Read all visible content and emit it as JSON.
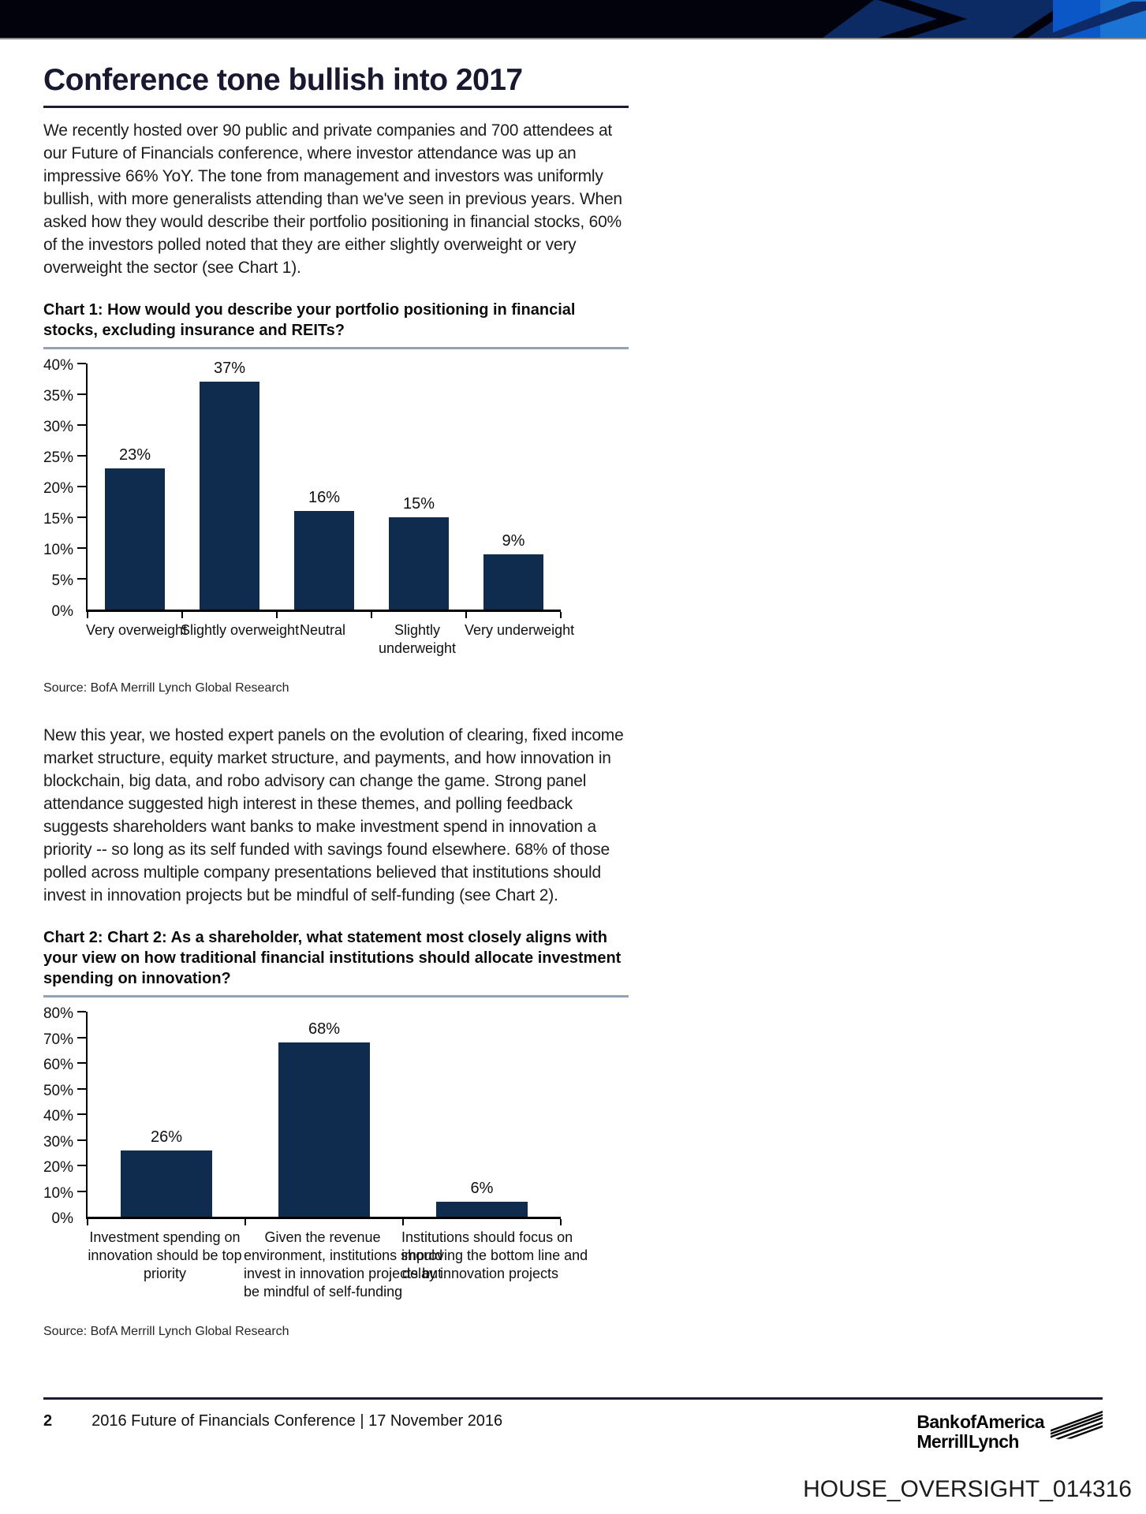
{
  "document": {
    "title": "Conference tone bullish into 2017",
    "paragraph1": "We recently hosted over 90 public and private companies and 700 attendees at our Future of Financials conference, where investor attendance was up an impressive 66% YoY. The tone from management and investors was uniformly bullish, with more generalists attending than we've seen in previous years. When asked how they would describe their portfolio positioning in financial stocks, 60% of the investors polled noted that they are either slightly overweight or very overweight the sector (see Chart 1).",
    "paragraph2": "New this year, we hosted expert panels on the evolution of clearing, fixed income market structure, equity market structure, and payments, and how innovation in blockchain, big data, and robo advisory can change the game. Strong panel attendance suggested high interest in these themes, and polling feedback suggests shareholders want banks to make investment spend in innovation a priority -- so long as its self funded with savings found elsewhere. 68% of those polled across multiple company presentations believed that institutions should invest in innovation projects but be mindful of self-funding (see Chart 2)."
  },
  "chart_data": [
    {
      "type": "bar",
      "title": "Chart 1: How would you describe your portfolio positioning in financial stocks, excluding insurance and REITs?",
      "categories": [
        "Very overweight",
        "Slightly overweight",
        "Neutral",
        "Slightly underweight",
        "Very underweight"
      ],
      "values": [
        23,
        37,
        16,
        15,
        9
      ],
      "value_labels": [
        "23%",
        "37%",
        "16%",
        "15%",
        "9%"
      ],
      "xtick_display": [
        "Very overweight",
        "Slightly overweight",
        "Neutral",
        "Slightly\nunderweight",
        "Very underweight"
      ],
      "ylim": [
        0,
        40
      ],
      "ytick_step": 5,
      "ytick_labels": [
        "0%",
        "5%",
        "10%",
        "15%",
        "20%",
        "25%",
        "30%",
        "35%",
        "40%"
      ],
      "grid": false,
      "legend": "none",
      "bar_color": "#0f2b4e",
      "source": "Source: BofA Merrill Lynch Global Research"
    },
    {
      "type": "bar",
      "title": "Chart 2: Chart 2: As a shareholder, what statement most closely aligns with your view on how traditional financial institutions should allocate investment spending on innovation?",
      "categories": [
        "Investment spending on innovation should be top priority",
        "Given the revenue environment, institutions should invest in innovation projects but be mindful of self-funding",
        "Institutions should focus on improving the bottom line and delay innovation projects"
      ],
      "values": [
        26,
        68,
        6
      ],
      "value_labels": [
        "26%",
        "68%",
        "6%"
      ],
      "xtick_display": [
        "Investment spending on\ninnovation should be top\npriority",
        "Given the revenue\nenvironment, institutions should\ninvest in innovation projects but\nbe mindful of self-funding",
        "Institutions should focus on\nimproving the bottom line and\ndelay innovation projects"
      ],
      "ylim": [
        0,
        80
      ],
      "ytick_step": 10,
      "ytick_labels": [
        "0%",
        "10%",
        "20%",
        "30%",
        "40%",
        "50%",
        "60%",
        "70%",
        "80%"
      ],
      "grid": false,
      "legend": "none",
      "bar_color": "#0f2b4e",
      "source": "Source: BofA Merrill Lynch Global Research"
    }
  ],
  "footer": {
    "page_number": "2",
    "text": "2016 Future of Financials Conference | 17 November 2016",
    "logo_line1": "Bank of America",
    "logo_line2": "Merrill Lynch"
  },
  "stamp": "HOUSE_OVERSIGHT_014316",
  "colors": {
    "bar": "#0f2b4e",
    "banner_black": "#02020c",
    "banner_navy": "#0c2a63",
    "banner_blue": "#0b57c8",
    "banner_light_blue": "#1b74d4"
  }
}
